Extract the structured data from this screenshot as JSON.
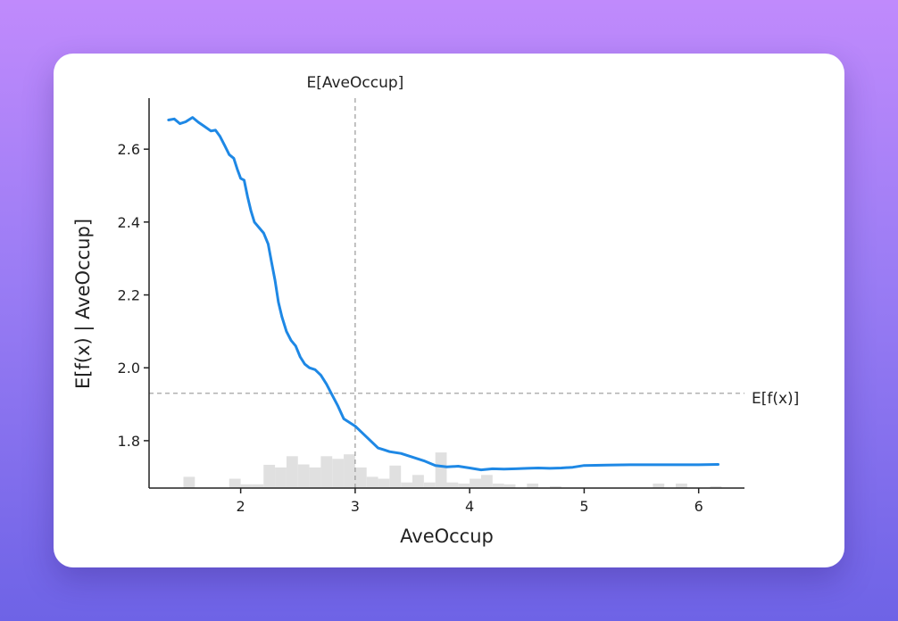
{
  "chart_data": {
    "type": "line",
    "xlabel": "AveOccup",
    "ylabel": "E[f(x) | AveOccup]",
    "xlim": [
      1.2,
      6.4
    ],
    "ylim": [
      1.67,
      2.74
    ],
    "xticks": [
      2,
      3,
      4,
      5,
      6
    ],
    "yticks": [
      1.8,
      2.0,
      2.2,
      2.4,
      2.6
    ],
    "xtick_labels": [
      "2",
      "3",
      "4",
      "5",
      "6"
    ],
    "ytick_labels": [
      "1.8",
      "2.0",
      "2.2",
      "2.4",
      "2.6"
    ],
    "grid": false,
    "line_color": "#1e88e5",
    "hist_color": "#e0e0e0",
    "ref_line_color": "#999999",
    "expected_x": {
      "value": 3.0,
      "label": "E[AveOccup]"
    },
    "expected_y": {
      "value": 1.93,
      "label": "E[f(x)]"
    },
    "series": [
      {
        "x": [
          1.37,
          1.42,
          1.47,
          1.52,
          1.58,
          1.63,
          1.68,
          1.74,
          1.78,
          1.82,
          1.86,
          1.9,
          1.94,
          1.97,
          2.0,
          2.03,
          2.06,
          2.09,
          2.12,
          2.16,
          2.2,
          2.24,
          2.27,
          2.3,
          2.33,
          2.36,
          2.4,
          2.44,
          2.48,
          2.52,
          2.56,
          2.6,
          2.65,
          2.7,
          2.75,
          2.8,
          2.85,
          2.9,
          2.95,
          3.0,
          3.05,
          3.1,
          3.15,
          3.2,
          3.25,
          3.3,
          3.4,
          3.5,
          3.6,
          3.7,
          3.8,
          3.9,
          4.0,
          4.1,
          4.2,
          4.3,
          4.4,
          4.5,
          4.6,
          4.7,
          4.8,
          4.9,
          5.0,
          5.2,
          5.4,
          5.6,
          5.8,
          6.0,
          6.17
        ],
        "y": [
          2.68,
          2.683,
          2.67,
          2.675,
          2.687,
          2.674,
          2.663,
          2.65,
          2.652,
          2.635,
          2.61,
          2.585,
          2.575,
          2.545,
          2.52,
          2.515,
          2.47,
          2.43,
          2.4,
          2.385,
          2.37,
          2.34,
          2.29,
          2.24,
          2.18,
          2.14,
          2.1,
          2.075,
          2.06,
          2.03,
          2.01,
          2.0,
          1.995,
          1.98,
          1.955,
          1.925,
          1.895,
          1.86,
          1.85,
          1.84,
          1.825,
          1.81,
          1.795,
          1.78,
          1.775,
          1.77,
          1.765,
          1.755,
          1.745,
          1.732,
          1.728,
          1.73,
          1.725,
          1.72,
          1.723,
          1.722,
          1.723,
          1.724,
          1.725,
          1.724,
          1.725,
          1.727,
          1.732,
          1.733,
          1.734,
          1.734,
          1.734,
          1.734,
          1.735
        ]
      }
    ],
    "histogram": [
      {
        "x": 1.55,
        "h": 0.3
      },
      {
        "x": 1.95,
        "h": 0.25
      },
      {
        "x": 2.05,
        "h": 0.1
      },
      {
        "x": 2.15,
        "h": 0.1
      },
      {
        "x": 2.25,
        "h": 0.62
      },
      {
        "x": 2.35,
        "h": 0.55
      },
      {
        "x": 2.45,
        "h": 0.85
      },
      {
        "x": 2.55,
        "h": 0.63
      },
      {
        "x": 2.65,
        "h": 0.55
      },
      {
        "x": 2.75,
        "h": 0.85
      },
      {
        "x": 2.85,
        "h": 0.78
      },
      {
        "x": 2.95,
        "h": 0.9
      },
      {
        "x": 3.05,
        "h": 0.55
      },
      {
        "x": 3.15,
        "h": 0.3
      },
      {
        "x": 3.25,
        "h": 0.25
      },
      {
        "x": 3.35,
        "h": 0.6
      },
      {
        "x": 3.45,
        "h": 0.15
      },
      {
        "x": 3.55,
        "h": 0.35
      },
      {
        "x": 3.65,
        "h": 0.15
      },
      {
        "x": 3.75,
        "h": 0.95
      },
      {
        "x": 3.85,
        "h": 0.15
      },
      {
        "x": 3.95,
        "h": 0.12
      },
      {
        "x": 4.05,
        "h": 0.25
      },
      {
        "x": 4.15,
        "h": 0.35
      },
      {
        "x": 4.25,
        "h": 0.12
      },
      {
        "x": 4.35,
        "h": 0.1
      },
      {
        "x": 4.55,
        "h": 0.12
      },
      {
        "x": 4.75,
        "h": 0.05
      },
      {
        "x": 5.65,
        "h": 0.12
      },
      {
        "x": 5.85,
        "h": 0.12
      },
      {
        "x": 6.15,
        "h": 0.05
      }
    ]
  }
}
